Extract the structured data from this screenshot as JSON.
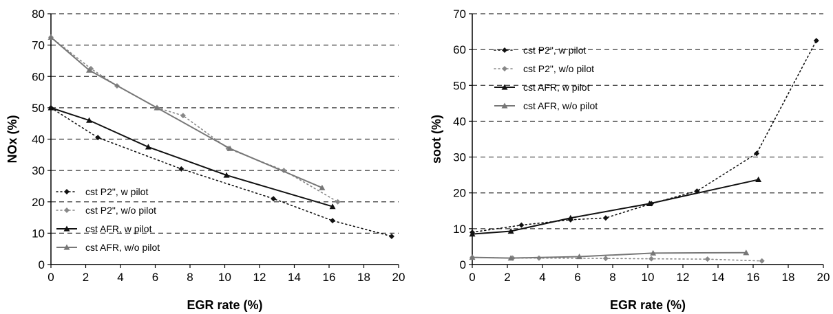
{
  "chart_data": [
    {
      "type": "line",
      "xlabel": "EGR rate (%)",
      "ylabel": "NOx (%)",
      "xlim": [
        0,
        20
      ],
      "ylim": [
        0,
        80
      ],
      "xticks": [
        "0",
        "2",
        "4",
        "6",
        "8",
        "10",
        "12",
        "14",
        "16",
        "18",
        "20"
      ],
      "yticks": [
        "0",
        "10",
        "20",
        "30",
        "40",
        "50",
        "60",
        "70",
        "80"
      ],
      "grid": "horizontal-dashed",
      "legend_position": "bottom-left",
      "series": [
        {
          "name": "cst P2\", w pilot",
          "color": "#111111",
          "line": "dotted",
          "marker": "diamond",
          "x": [
            0,
            2.7,
            7.5,
            12.8,
            16.2,
            19.6
          ],
          "y": [
            50,
            40.5,
            30.5,
            21,
            14,
            9
          ]
        },
        {
          "name": "cst P2\", w/o pilot",
          "color": "#888888",
          "line": "dotted",
          "marker": "diamond",
          "x": [
            0,
            2.3,
            3.8,
            6.1,
            7.6,
            10.2,
            13.4,
            16.5
          ],
          "y": [
            72.5,
            62.5,
            57,
            50,
            47.5,
            37,
            30,
            20
          ]
        },
        {
          "name": "cst AFR, w pilot",
          "color": "#111111",
          "line": "solid",
          "marker": "triangle",
          "x": [
            0,
            2.2,
            5.6,
            10.1,
            16.2
          ],
          "y": [
            50,
            46,
            37.5,
            28.5,
            18.5
          ]
        },
        {
          "name": "cst AFR, w/o pilot",
          "color": "#777777",
          "line": "solid",
          "marker": "triangle",
          "x": [
            0,
            2.2,
            6.1,
            10.3,
            15.6
          ],
          "y": [
            72.5,
            62,
            50,
            37,
            24.5
          ]
        }
      ]
    },
    {
      "type": "line",
      "xlabel": "EGR rate (%)",
      "ylabel": "soot (%)",
      "xlim": [
        0,
        20
      ],
      "ylim": [
        0,
        70
      ],
      "xticks": [
        "0",
        "2",
        "4",
        "6",
        "8",
        "10",
        "12",
        "14",
        "16",
        "18",
        "20"
      ],
      "yticks": [
        "0",
        "10",
        "20",
        "30",
        "40",
        "50",
        "60",
        "70"
      ],
      "grid": "horizontal-dashed",
      "legend_position": "top-left",
      "series": [
        {
          "name": "cst P2\", w pilot",
          "color": "#111111",
          "line": "dotted",
          "marker": "diamond",
          "x": [
            0,
            2.8,
            5.6,
            7.6,
            10.2,
            12.8,
            16.2,
            19.6
          ],
          "y": [
            9,
            11,
            12.5,
            13,
            17,
            20.5,
            31,
            62.5
          ]
        },
        {
          "name": "cst P2\", w/o pilot",
          "color": "#888888",
          "line": "dotted",
          "marker": "diamond",
          "x": [
            0,
            2.3,
            3.8,
            7.6,
            10.2,
            13.4,
            16.5
          ],
          "y": [
            2,
            1.8,
            1.8,
            1.7,
            1.6,
            1.5,
            1
          ]
        },
        {
          "name": "cst AFR, w pilot",
          "color": "#111111",
          "line": "solid",
          "marker": "triangle",
          "x": [
            0,
            2.2,
            5.6,
            10.1,
            16.3
          ],
          "y": [
            8.5,
            9.3,
            13,
            17,
            23.7
          ]
        },
        {
          "name": "cst AFR, w/o pilot",
          "color": "#777777",
          "line": "solid",
          "marker": "triangle",
          "x": [
            0,
            2.2,
            6.1,
            10.3,
            15.6
          ],
          "y": [
            2,
            1.8,
            2.2,
            3.2,
            3.3
          ]
        }
      ]
    }
  ]
}
